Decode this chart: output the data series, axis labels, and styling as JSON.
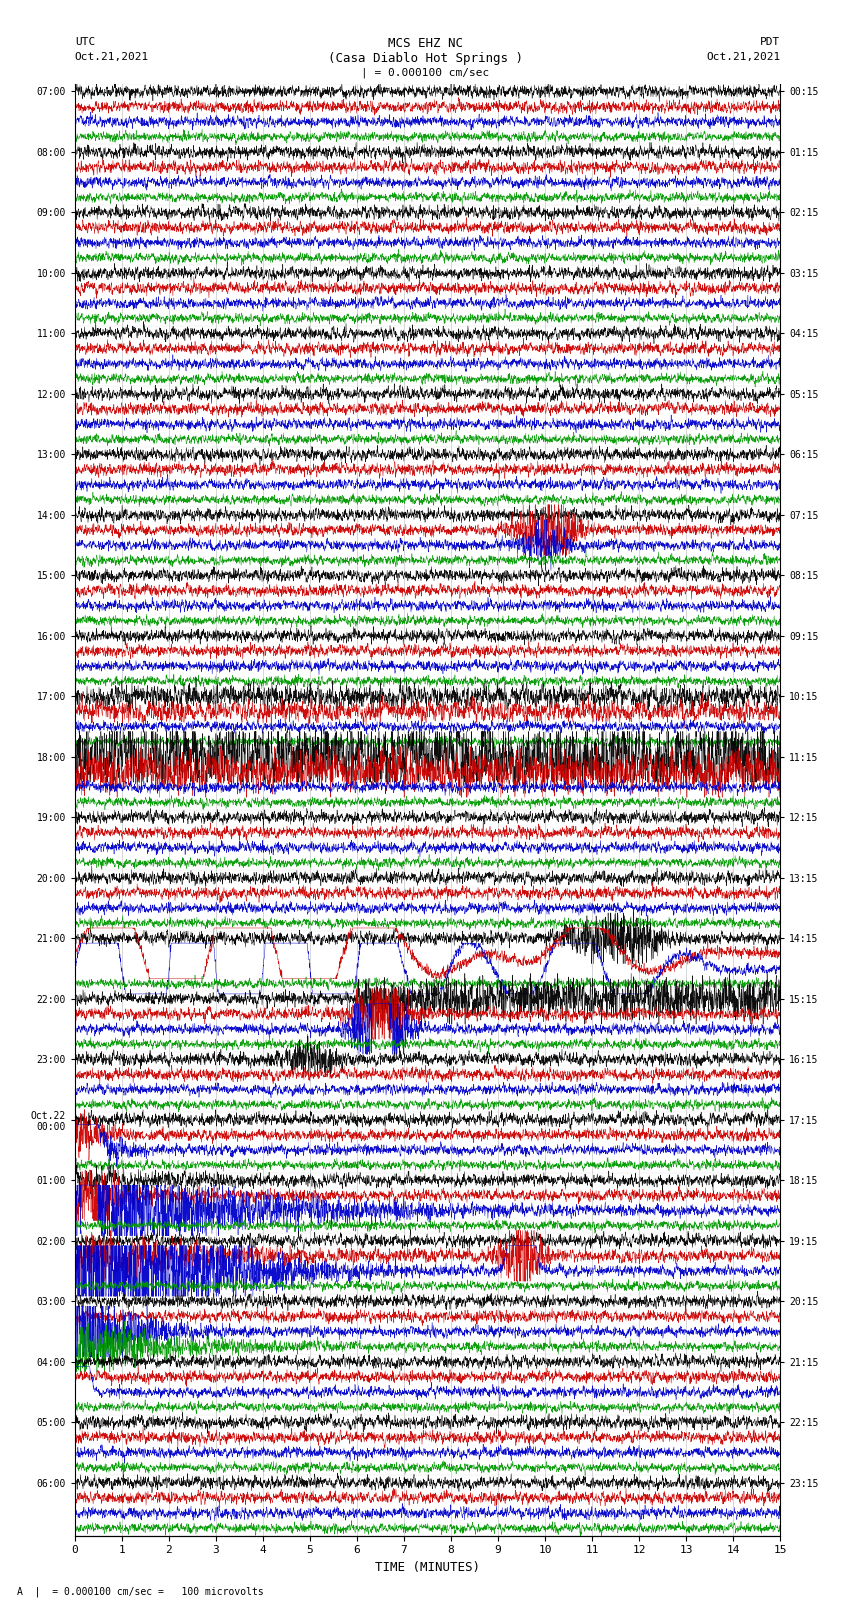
{
  "title_line1": "MCS EHZ NC",
  "title_line2": "(Casa Diablo Hot Springs )",
  "title_line3": "| = 0.000100 cm/sec",
  "left_header_1": "UTC",
  "left_header_2": "Oct.21,2021",
  "right_header_1": "PDT",
  "right_header_2": "Oct.21,2021",
  "left_times": [
    "07:00",
    "08:00",
    "09:00",
    "10:00",
    "11:00",
    "12:00",
    "13:00",
    "14:00",
    "15:00",
    "16:00",
    "17:00",
    "18:00",
    "19:00",
    "20:00",
    "21:00",
    "22:00",
    "23:00",
    "Oct.22\n00:00",
    "01:00",
    "02:00",
    "03:00",
    "04:00",
    "05:00",
    "06:00"
  ],
  "right_times": [
    "00:15",
    "01:15",
    "02:15",
    "03:15",
    "04:15",
    "05:15",
    "06:15",
    "07:15",
    "08:15",
    "09:15",
    "10:15",
    "11:15",
    "12:15",
    "13:15",
    "14:15",
    "15:15",
    "16:15",
    "17:15",
    "18:15",
    "19:15",
    "20:15",
    "21:15",
    "22:15",
    "23:15"
  ],
  "xlabel": "TIME (MINUTES)",
  "footnote": "A  |  = 0.000100 cm/sec =   100 microvolts",
  "colors": [
    "#000000",
    "#cc0000",
    "#0000cc",
    "#009900"
  ],
  "bg_color": "#ffffff",
  "xlim": [
    0,
    15
  ],
  "xticks": [
    0,
    1,
    2,
    3,
    4,
    5,
    6,
    7,
    8,
    9,
    10,
    11,
    12,
    13,
    14,
    15
  ],
  "num_hours": 24,
  "traces_per_hour": 4,
  "noise_scale": [
    0.3,
    0.28,
    0.25,
    0.22
  ],
  "figsize": [
    8.5,
    16.13
  ],
  "dpi": 100
}
